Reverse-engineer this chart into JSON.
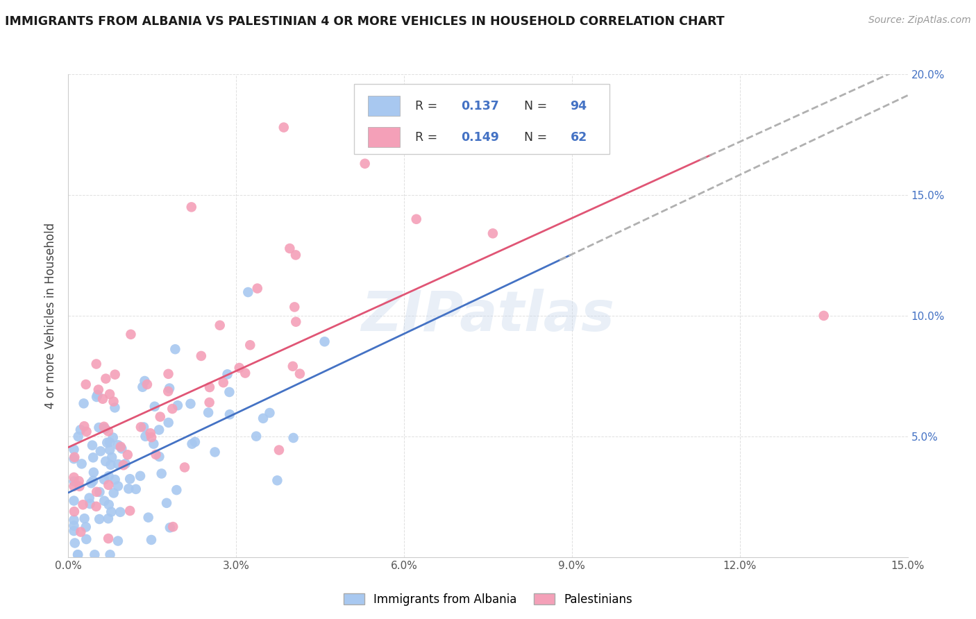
{
  "title": "IMMIGRANTS FROM ALBANIA VS PALESTINIAN 4 OR MORE VEHICLES IN HOUSEHOLD CORRELATION CHART",
  "source": "Source: ZipAtlas.com",
  "ylabel": "4 or more Vehicles in Household",
  "xlim": [
    0.0,
    0.15
  ],
  "ylim": [
    0.0,
    0.2
  ],
  "xticks": [
    0.0,
    0.03,
    0.06,
    0.09,
    0.12,
    0.15
  ],
  "yticks": [
    0.0,
    0.05,
    0.1,
    0.15,
    0.2
  ],
  "xticklabels": [
    "0.0%",
    "3.0%",
    "6.0%",
    "9.0%",
    "12.0%",
    "15.0%"
  ],
  "yticklabels_right": [
    "",
    "5.0%",
    "10.0%",
    "15.0%",
    "20.0%"
  ],
  "albania_color": "#a8c8f0",
  "palestinian_color": "#f4a0b8",
  "albania_line_color": "#4472c4",
  "palestinian_line_color": "#e05575",
  "dash_color": "#b0b0b0",
  "albania_R": 0.137,
  "albania_N": 94,
  "palestinian_R": 0.149,
  "palestinian_N": 62,
  "legend_label_albania": "Immigrants from Albania",
  "legend_label_palestinian": "Palestinians",
  "watermark": "ZIPatlas",
  "background_color": "#ffffff",
  "grid_color": "#e0e0e0",
  "title_color": "#1a1a1a",
  "source_color": "#999999",
  "right_tick_color": "#4472c4",
  "legend_text_color": "#333333",
  "legend_val_color": "#4472c4"
}
